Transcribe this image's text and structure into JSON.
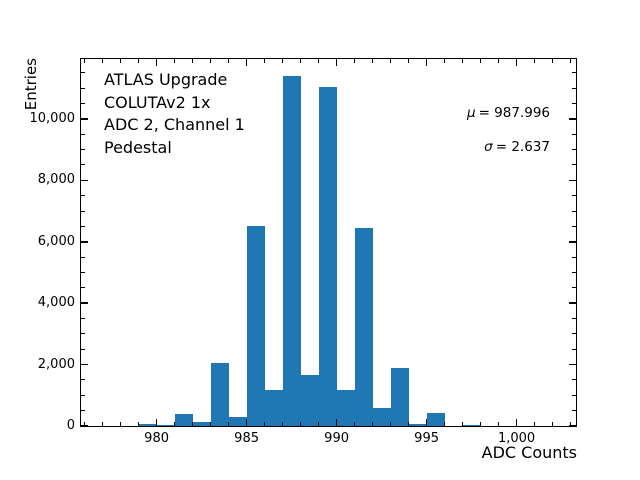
{
  "figure": {
    "annotation_lines": [
      "ATLAS Upgrade",
      "COLUTAv2 1x",
      "ADC 2, Channel 1",
      "Pedestal"
    ],
    "stats": {
      "mu_symbol": "μ",
      "mu_value": "= 987.996",
      "sigma_symbol": "σ",
      "sigma_value": "= 2.637"
    }
  },
  "chart_data": {
    "type": "bar",
    "title": "",
    "xlabel": "ADC Counts",
    "ylabel": "Entries",
    "annotation": "ATLAS Upgrade COLUTAv2 1x ADC 2, Channel 1 Pedestal",
    "mu": 987.996,
    "sigma": 2.637,
    "bar_color": "#1f77b4",
    "bin_width": 1,
    "bins": [
      {
        "x": 977,
        "count": 0
      },
      {
        "x": 978,
        "count": 0
      },
      {
        "x": 979,
        "count": 60
      },
      {
        "x": 980,
        "count": 30
      },
      {
        "x": 981,
        "count": 400
      },
      {
        "x": 982,
        "count": 130
      },
      {
        "x": 983,
        "count": 2040
      },
      {
        "x": 984,
        "count": 280
      },
      {
        "x": 985,
        "count": 6520
      },
      {
        "x": 986,
        "count": 1160
      },
      {
        "x": 987,
        "count": 11390
      },
      {
        "x": 988,
        "count": 1650
      },
      {
        "x": 989,
        "count": 11050
      },
      {
        "x": 990,
        "count": 1160
      },
      {
        "x": 991,
        "count": 6460
      },
      {
        "x": 992,
        "count": 600
      },
      {
        "x": 993,
        "count": 1880
      },
      {
        "x": 994,
        "count": 80
      },
      {
        "x": 995,
        "count": 420
      },
      {
        "x": 996,
        "count": 0
      },
      {
        "x": 997,
        "count": 40
      },
      {
        "x": 998,
        "count": 0
      },
      {
        "x": 999,
        "count": 0
      },
      {
        "x": 1000,
        "count": 0
      },
      {
        "x": 1001,
        "count": 0
      }
    ],
    "xlim": [
      975.8,
      1003.3
    ],
    "ylim": [
      0,
      11950
    ],
    "grid": false,
    "legend": "none",
    "x_major_ticks": [
      980,
      985,
      990,
      995,
      1000
    ],
    "x_major_tick_labels": [
      "980",
      "985",
      "990",
      "995",
      "1,000"
    ],
    "x_minor_tick_step": 1,
    "y_major_ticks": [
      0,
      2000,
      4000,
      6000,
      8000,
      10000
    ],
    "y_major_tick_labels": [
      "0",
      "2,000",
      "4,000",
      "6,000",
      "8,000",
      "10,000"
    ],
    "y_minor_tick_step": 500
  }
}
